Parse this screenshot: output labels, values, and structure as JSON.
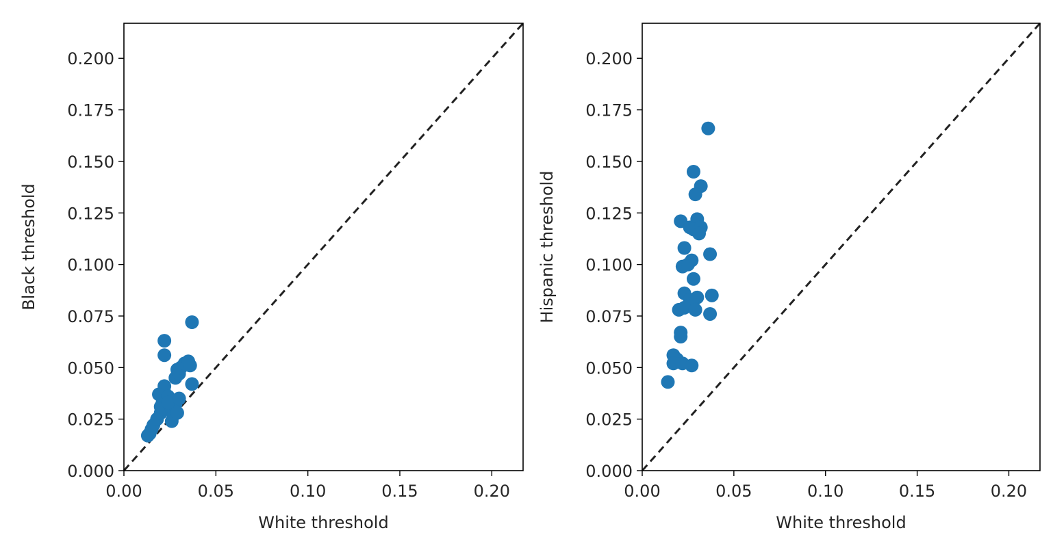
{
  "chart_data": [
    {
      "type": "scatter",
      "title": "",
      "xlabel": "White threshold",
      "ylabel": "Black threshold",
      "xlim": [
        0,
        0.217
      ],
      "ylim": [
        0,
        0.217
      ],
      "xticks": [
        "0.00",
        "0.05",
        "0.10",
        "0.15",
        "0.20"
      ],
      "yticks": [
        "0.000",
        "0.025",
        "0.050",
        "0.075",
        "0.100",
        "0.125",
        "0.150",
        "0.175",
        "0.200"
      ],
      "reference_line": "y = x (dashed)",
      "grid": false,
      "color": "#1f77b4",
      "points": [
        [
          0.013,
          0.017
        ],
        [
          0.014,
          0.018
        ],
        [
          0.015,
          0.02
        ],
        [
          0.016,
          0.022
        ],
        [
          0.018,
          0.025
        ],
        [
          0.02,
          0.028
        ],
        [
          0.02,
          0.031
        ],
        [
          0.021,
          0.033
        ],
        [
          0.022,
          0.03
        ],
        [
          0.023,
          0.035
        ],
        [
          0.022,
          0.038
        ],
        [
          0.022,
          0.041
        ],
        [
          0.019,
          0.037
        ],
        [
          0.024,
          0.036
        ],
        [
          0.025,
          0.032
        ],
        [
          0.026,
          0.03
        ],
        [
          0.026,
          0.024
        ],
        [
          0.027,
          0.027
        ],
        [
          0.027,
          0.034
        ],
        [
          0.028,
          0.032
        ],
        [
          0.029,
          0.028
        ],
        [
          0.028,
          0.045
        ],
        [
          0.029,
          0.049
        ],
        [
          0.03,
          0.047
        ],
        [
          0.031,
          0.05
        ],
        [
          0.033,
          0.052
        ],
        [
          0.035,
          0.053
        ],
        [
          0.036,
          0.051
        ],
        [
          0.037,
          0.042
        ],
        [
          0.037,
          0.072
        ],
        [
          0.022,
          0.063
        ],
        [
          0.022,
          0.056
        ],
        [
          0.024,
          0.033
        ],
        [
          0.03,
          0.035
        ]
      ]
    },
    {
      "type": "scatter",
      "title": "",
      "xlabel": "White threshold",
      "ylabel": "Hispanic threshold",
      "xlim": [
        0,
        0.217
      ],
      "ylim": [
        0,
        0.217
      ],
      "xticks": [
        "0.00",
        "0.05",
        "0.10",
        "0.15",
        "0.20"
      ],
      "yticks": [
        "0.000",
        "0.025",
        "0.050",
        "0.075",
        "0.100",
        "0.125",
        "0.150",
        "0.175",
        "0.200"
      ],
      "reference_line": "y = x (dashed)",
      "grid": false,
      "color": "#1f77b4",
      "points": [
        [
          0.036,
          0.166
        ],
        [
          0.028,
          0.145
        ],
        [
          0.032,
          0.138
        ],
        [
          0.029,
          0.134
        ],
        [
          0.021,
          0.121
        ],
        [
          0.03,
          0.122
        ],
        [
          0.026,
          0.118
        ],
        [
          0.028,
          0.117
        ],
        [
          0.032,
          0.118
        ],
        [
          0.031,
          0.115
        ],
        [
          0.023,
          0.108
        ],
        [
          0.037,
          0.105
        ],
        [
          0.027,
          0.102
        ],
        [
          0.022,
          0.099
        ],
        [
          0.025,
          0.1
        ],
        [
          0.028,
          0.093
        ],
        [
          0.023,
          0.086
        ],
        [
          0.026,
          0.083
        ],
        [
          0.03,
          0.084
        ],
        [
          0.038,
          0.085
        ],
        [
          0.02,
          0.078
        ],
        [
          0.023,
          0.079
        ],
        [
          0.027,
          0.081
        ],
        [
          0.029,
          0.078
        ],
        [
          0.037,
          0.076
        ],
        [
          0.021,
          0.067
        ],
        [
          0.021,
          0.065
        ],
        [
          0.017,
          0.056
        ],
        [
          0.019,
          0.054
        ],
        [
          0.017,
          0.052
        ],
        [
          0.022,
          0.052
        ],
        [
          0.027,
          0.051
        ],
        [
          0.014,
          0.043
        ]
      ]
    }
  ]
}
